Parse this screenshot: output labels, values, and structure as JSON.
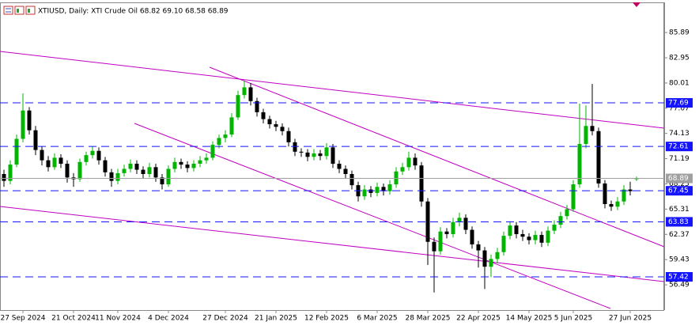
{
  "chart_data": {
    "type": "candlestick",
    "title": "XTIUSD, Daily: XTI Crude Oil 68.82 69.10 68.58 68.89",
    "up_color": "#00b400",
    "down_color": "#000000",
    "level_color": "#1414ff",
    "price_line_color": "#a0a0a0",
    "ylim": [
      53.55,
      89.4
    ],
    "yticks": [
      85.89,
      82.95,
      80.01,
      77.07,
      74.13,
      71.19,
      68.25,
      65.31,
      62.37,
      59.43,
      56.49
    ],
    "xlim": [
      -0.625,
      104.375
    ],
    "xticks": [
      {
        "value": 3,
        "label": "27 Sep 2024"
      },
      {
        "value": 11,
        "label": "21 Oct 2024"
      },
      {
        "value": 18,
        "label": "11 Nov 2024"
      },
      {
        "value": 26,
        "label": "4 Dec 2024"
      },
      {
        "value": 35,
        "label": "27 Dec 2024"
      },
      {
        "value": 43,
        "label": "21 Jan 2025"
      },
      {
        "value": 51,
        "label": "12 Feb 2025"
      },
      {
        "value": 59,
        "label": "6 Mar 2025"
      },
      {
        "value": 67,
        "label": "28 Mar 2025"
      },
      {
        "value": 75,
        "label": "22 Apr 2025"
      },
      {
        "value": 83,
        "label": "14 May 2025"
      },
      {
        "value": 90,
        "label": "5 Jun 2025"
      },
      {
        "value": 99,
        "label": "27 Jun 2025"
      }
    ],
    "levels": [
      77.69,
      72.61,
      67.45,
      63.83,
      57.42
    ],
    "open": [
      69.4,
      68.6,
      70.5,
      73.5,
      76.8,
      74.5,
      72.2,
      71.0,
      70.2,
      71.3,
      70.6,
      69.0,
      68.8,
      70.8,
      71.6,
      72.1,
      71.0,
      69.6,
      68.6,
      69.5,
      70.0,
      70.6,
      69.9,
      69.4,
      70.2,
      69.0,
      68.2,
      70.0,
      70.8,
      70.5,
      70.1,
      70.6,
      71.0,
      71.3,
      72.8,
      73.6,
      74.0,
      76.0,
      78.6,
      79.5,
      77.9,
      76.6,
      75.8,
      75.2,
      74.9,
      74.4,
      73.1,
      72.0,
      71.9,
      71.4,
      71.8,
      71.5,
      72.5,
      70.6,
      70.0,
      69.4,
      68.1,
      66.8,
      67.6,
      67.2,
      67.9,
      67.4,
      68.2,
      69.7,
      70.2,
      71.3,
      70.4,
      66.2,
      61.5,
      60.4,
      62.7,
      62.4,
      63.8,
      64.3,
      62.9,
      61.2,
      60.5,
      58.6,
      59.5,
      60.3,
      62.2,
      63.4,
      62.4,
      62.1,
      61.7,
      62.3,
      61.4,
      62.8,
      63.5,
      64.5,
      65.3,
      68.2,
      72.9,
      75.0,
      74.4,
      68.3,
      65.9,
      65.6,
      66.2,
      67.6,
      68.82
    ],
    "high": [
      69.9,
      71.0,
      74.0,
      78.8,
      77.2,
      75.0,
      72.6,
      71.5,
      71.8,
      71.7,
      71.0,
      69.5,
      71.2,
      72.0,
      72.6,
      72.5,
      71.4,
      70.0,
      70.0,
      70.5,
      71.1,
      71.0,
      70.3,
      70.7,
      70.6,
      69.4,
      70.4,
      71.3,
      71.2,
      70.9,
      71.0,
      71.5,
      71.8,
      73.2,
      74.0,
      74.5,
      76.5,
      79.1,
      80.3,
      80.0,
      78.3,
      77.0,
      76.2,
      75.6,
      75.3,
      74.8,
      73.5,
      72.4,
      72.3,
      72.3,
      72.2,
      73.0,
      72.9,
      71.0,
      70.4,
      69.8,
      68.5,
      68.1,
      68.0,
      68.4,
      68.3,
      68.7,
      70.2,
      70.7,
      72.0,
      71.8,
      70.8,
      66.6,
      62.0,
      63.2,
      63.1,
      64.3,
      64.9,
      64.7,
      63.3,
      61.6,
      60.9,
      60.0,
      60.8,
      62.7,
      63.9,
      63.8,
      62.9,
      62.5,
      62.8,
      62.7,
      63.3,
      64.0,
      65.0,
      65.8,
      68.7,
      77.6,
      77.4,
      79.9,
      74.8,
      68.7,
      66.3,
      66.7,
      68.1,
      68.5,
      69.1
    ],
    "low": [
      67.9,
      68.2,
      70.2,
      73.1,
      74.0,
      71.6,
      70.4,
      69.7,
      69.9,
      70.1,
      68.4,
      67.9,
      68.5,
      70.4,
      71.2,
      70.5,
      69.1,
      67.9,
      68.2,
      69.1,
      69.6,
      69.4,
      68.9,
      69.0,
      68.5,
      67.6,
      67.9,
      69.6,
      70.0,
      69.6,
      69.7,
      70.2,
      70.6,
      71.0,
      72.4,
      73.1,
      73.7,
      75.7,
      78.2,
      77.4,
      76.1,
      75.3,
      74.7,
      74.4,
      73.9,
      72.6,
      71.5,
      71.4,
      70.9,
      71.0,
      71.0,
      71.1,
      70.1,
      69.5,
      68.9,
      67.6,
      66.2,
      66.4,
      66.7,
      66.8,
      66.9,
      67.0,
      67.8,
      69.3,
      69.8,
      69.9,
      65.6,
      58.8,
      55.6,
      60.0,
      61.9,
      62.0,
      63.3,
      62.4,
      60.7,
      58.5,
      56.0,
      57.4,
      59.0,
      59.9,
      61.8,
      61.9,
      61.6,
      61.2,
      61.2,
      60.9,
      61.0,
      62.4,
      63.1,
      64.1,
      65.0,
      67.8,
      72.4,
      73.9,
      67.8,
      65.4,
      65.1,
      65.2,
      65.8,
      66.9,
      68.58
    ],
    "close": [
      68.6,
      70.5,
      73.5,
      76.8,
      74.5,
      72.2,
      71.0,
      70.2,
      71.3,
      70.6,
      69.0,
      68.8,
      70.8,
      71.6,
      72.1,
      71.0,
      69.6,
      68.6,
      69.5,
      70.0,
      70.6,
      69.9,
      69.4,
      70.2,
      69.0,
      68.2,
      70.0,
      70.8,
      70.5,
      70.1,
      70.6,
      71.0,
      71.3,
      72.8,
      73.6,
      74.0,
      76.0,
      78.6,
      79.5,
      77.9,
      76.6,
      75.8,
      75.2,
      74.9,
      74.4,
      73.1,
      72.0,
      71.9,
      71.4,
      71.8,
      71.5,
      72.5,
      70.6,
      70.0,
      69.4,
      68.1,
      66.8,
      67.6,
      67.2,
      67.9,
      67.4,
      68.2,
      69.7,
      70.2,
      71.3,
      70.4,
      66.2,
      61.5,
      60.4,
      62.7,
      62.4,
      63.8,
      64.3,
      62.9,
      61.2,
      60.5,
      58.6,
      59.5,
      60.3,
      62.2,
      63.4,
      62.4,
      62.1,
      61.7,
      62.3,
      61.4,
      62.8,
      63.5,
      64.5,
      65.3,
      68.2,
      72.9,
      75.0,
      74.4,
      68.3,
      65.9,
      65.6,
      66.2,
      67.6,
      67.4,
      68.89
    ]
  }
}
